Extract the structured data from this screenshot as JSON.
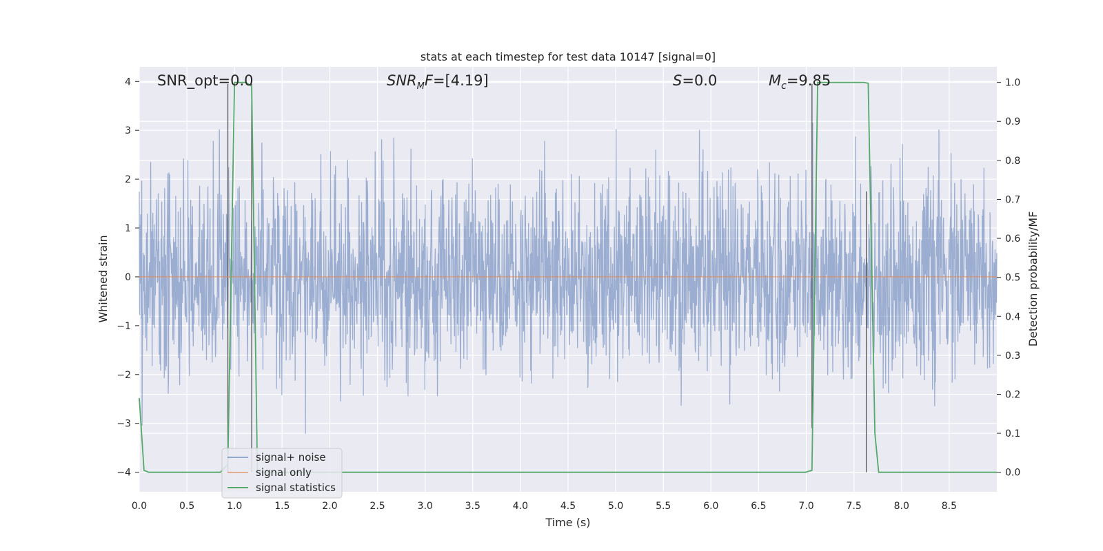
{
  "chart_data": {
    "type": "line",
    "title": "stats at each timestep for test data 10147 [signal=0]",
    "xlabel": "Time (s)",
    "ylabel_left": "Whitened strain",
    "ylabel_right": "Detection probability/MF",
    "xlim": [
      0,
      9.0
    ],
    "ylim_left": [
      -4.4,
      4.3
    ],
    "ylim_right": [
      -0.05,
      1.04
    ],
    "x_ticks": [
      "0.0",
      "0.5",
      "1.0",
      "1.5",
      "2.0",
      "2.5",
      "3.0",
      "3.5",
      "4.0",
      "4.5",
      "5.0",
      "5.5",
      "6.0",
      "6.5",
      "7.0",
      "7.5",
      "8.0",
      "8.5"
    ],
    "y_left_ticks": [
      "4",
      "3",
      "2",
      "1",
      "0",
      "−1",
      "−2",
      "−3",
      "−4"
    ],
    "y_right_ticks": [
      "1.0",
      "0.9",
      "0.8",
      "0.7",
      "0.6",
      "0.5",
      "0.4",
      "0.3",
      "0.2",
      "0.1",
      "0.0"
    ],
    "grid": true,
    "background": "#eaeaf2",
    "annotations": {
      "snr_opt": "SNR_opt=0.0",
      "snr_mf_label": "SNR",
      "snr_mf_sub": "M",
      "snr_mf_mid": "F",
      "snr_mf_value": "=[4.19]",
      "s_label": "S",
      "s_value": "=0.0",
      "mc_label": "M",
      "mc_sub": "c",
      "mc_value": "=9.85"
    },
    "legend": {
      "placement": "lower-left",
      "entries": [
        "signal+ noise",
        "signal only",
        "signal statistics"
      ]
    },
    "series": [
      {
        "name": "signal+ noise",
        "axis": "left",
        "color": "#4c72b0",
        "description": "whitened strain noise, roughly within ±2.8 with occasional spikes to about 3.3 and -4",
        "amplitude_envelope": [
          -4.0,
          3.3
        ]
      },
      {
        "name": "signal only",
        "axis": "left",
        "color": "#dd8452",
        "x": [
          0.0,
          9.0
        ],
        "y": [
          0.0,
          0.0
        ]
      },
      {
        "name": "signal statistics",
        "axis": "right",
        "color": "#55a868",
        "x": [
          0.0,
          0.05,
          0.1,
          0.85,
          0.93,
          1.0,
          1.12,
          1.18,
          1.24,
          6.99,
          7.06,
          7.12,
          7.6,
          7.65,
          7.72,
          7.76,
          9.0
        ],
        "y": [
          0.19,
          0.005,
          0.0,
          0.0,
          0.02,
          1.0,
          1.0,
          0.99,
          0.0,
          0.0,
          0.005,
          1.0,
          1.0,
          0.998,
          0.1,
          0.0,
          0.0
        ]
      }
    ],
    "vertical_markers": [
      {
        "x": 0.93,
        "y_range": [
          -4.0,
          3.95
        ]
      },
      {
        "x": 1.18,
        "y_range": [
          -4.0,
          3.95
        ]
      },
      {
        "x": 7.06,
        "y_range": [
          -3.1,
          3.95
        ]
      },
      {
        "x": 7.63,
        "y_range": [
          -4.0,
          1.75
        ]
      }
    ]
  }
}
